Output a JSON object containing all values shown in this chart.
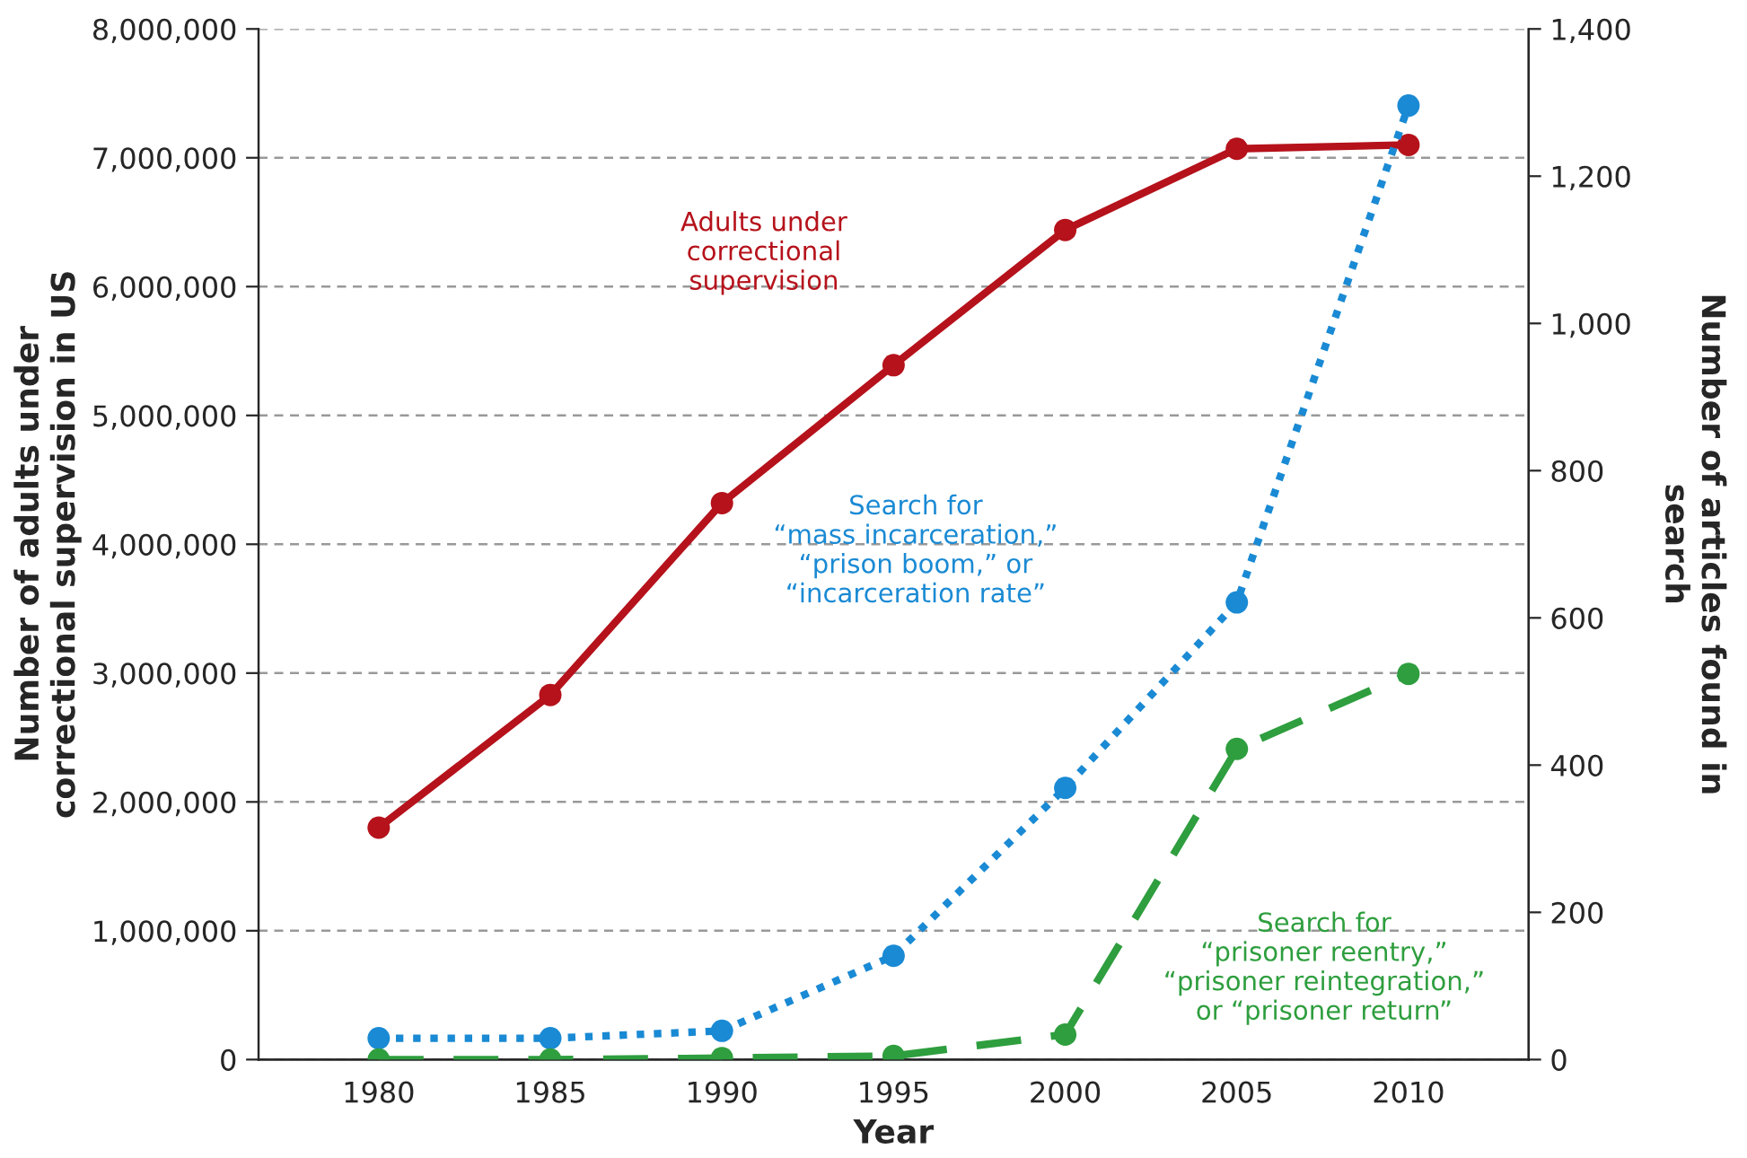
{
  "chart_data": {
    "type": "line",
    "xlabel": "Year",
    "ylabel": "Number of adults under\ncorrectional supervision in US",
    "y2label": "Number of articles found in\nsearch",
    "x": [
      1980,
      1985,
      1990,
      1995,
      2000,
      2005,
      2010
    ],
    "xlim": [
      1976.5,
      2013.5
    ],
    "xticks": [
      1980,
      1985,
      1990,
      1995,
      2000,
      2005,
      2010
    ],
    "ylim": [
      0,
      8000000
    ],
    "yticks": [
      {
        "value": 0,
        "label": "0"
      },
      {
        "value": 1000000,
        "label": "1,000,000"
      },
      {
        "value": 2000000,
        "label": "2,000,000"
      },
      {
        "value": 3000000,
        "label": "3,000,000"
      },
      {
        "value": 4000000,
        "label": "4,000,000"
      },
      {
        "value": 5000000,
        "label": "5,000,000"
      },
      {
        "value": 6000000,
        "label": "6,000,000"
      },
      {
        "value": 7000000,
        "label": "7,000,000"
      },
      {
        "value": 8000000,
        "label": "8,000,000"
      }
    ],
    "y2lim": [
      0,
      1400
    ],
    "y2ticks": [
      0,
      200,
      400,
      600,
      800,
      {
        "value": 1000,
        "label": "1,000"
      },
      {
        "value": 1200,
        "label": "1,200"
      },
      {
        "value": 1400,
        "label": "1,400"
      }
    ],
    "grid": "y",
    "marker": "circle",
    "series": [
      {
        "name": "Adults under\ncorrectional\nsupervision",
        "color": "#b5121b",
        "line_style": "solid",
        "values": [
          1800000,
          2830000,
          4320000,
          5390000,
          6440000,
          7070000,
          7100000
        ]
      },
      {
        "name": "Search for\n“mass incarceration,”\n“prison boom,” or\n“incarceration rate”",
        "color": "#1a8ad4",
        "line_style": "dotted",
        "axis": "y2",
        "values": [
          29,
          29,
          39,
          141,
          369,
          621,
          1296
        ]
      },
      {
        "name": "Search for\n“prisoner reentry,”\n“prisoner reintegration,”\nor “prisoner return”",
        "color": "#2e9e3e",
        "line_style": "dashed",
        "axis": "y2",
        "values": [
          0,
          0,
          2,
          5,
          34,
          422,
          524
        ]
      }
    ]
  }
}
